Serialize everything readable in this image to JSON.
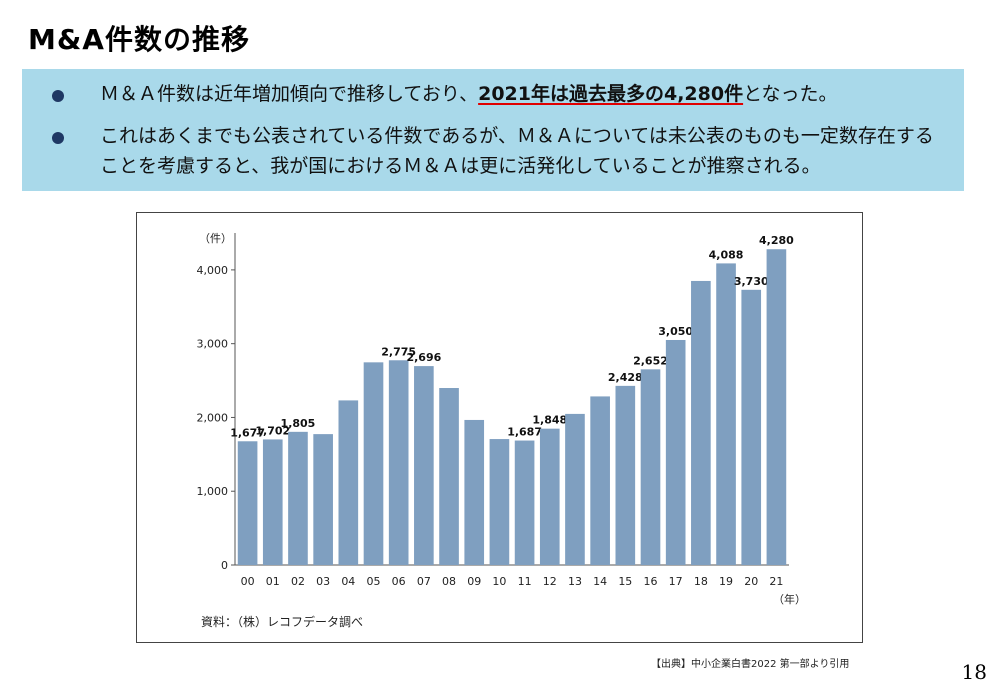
{
  "slide": {
    "title": "M&A件数の推移",
    "citation": "【出典】中小企業白書2022 第一部より引用",
    "page_number": "18"
  },
  "info_box": {
    "bullet1_prefix": "Ｍ＆Ａ件数は近年増加傾向で推移しており、",
    "bullet1_emphasis": "2021年は過去最多の4,280件",
    "bullet1_suffix": "となった。",
    "bullet2_line1": "これはあくまでも公表されている件数であるが、Ｍ＆Ａについては未公表のものも一定数存在する",
    "bullet2_line2": "ことを考慮すると、我が国におけるＭ＆Ａは更に活発化していることが推察される。"
  },
  "chart_data": {
    "type": "bar",
    "ylabel": "（件）",
    "xlabel": "（年）",
    "ylim": [
      0,
      4500
    ],
    "yticks": [
      "0",
      "1,000",
      "2,000",
      "3,000",
      "4,000"
    ],
    "grid": false,
    "bar_color": "#7f9fc0",
    "categories": [
      "00",
      "01",
      "02",
      "03",
      "04",
      "05",
      "06",
      "07",
      "08",
      "09",
      "10",
      "11",
      "12",
      "13",
      "14",
      "15",
      "16",
      "17",
      "18",
      "19",
      "20",
      "21"
    ],
    "values": [
      1677,
      1702,
      1805,
      1774,
      2231,
      2747,
      2775,
      2696,
      2399,
      1966,
      1707,
      1687,
      1848,
      2048,
      2285,
      2428,
      2652,
      3050,
      3850,
      4088,
      3730,
      4280
    ],
    "data_labels": [
      "1,677",
      "1,702",
      "1,805",
      "",
      "",
      "",
      "2,775",
      "2,696",
      "",
      "",
      "",
      "1,687",
      "1,848",
      "",
      "",
      "2,428",
      "2,652",
      "3,050",
      "",
      "4,088",
      "3,730",
      "4,280"
    ],
    "source": "資料：（株）レコフデータ調べ"
  }
}
